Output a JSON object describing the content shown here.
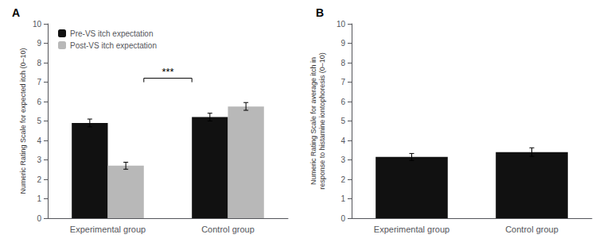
{
  "chart_data": [
    {
      "type": "bar",
      "title": "A",
      "categories": [
        "Experimental group",
        "Control group"
      ],
      "series": [
        {
          "name": "Pre-VS itch expectation",
          "color": "#111111",
          "values": [
            4.9,
            5.2
          ],
          "errors": [
            0.2,
            0.2
          ]
        },
        {
          "name": "Post-VS itch expectation",
          "color": "#b8b8b8",
          "values": [
            2.7,
            5.75
          ],
          "errors": [
            0.18,
            0.2
          ]
        }
      ],
      "ylabel": "Numeric Rating Scale for expected itch (0–10)",
      "ylim": [
        0,
        10
      ],
      "yticks": [
        0,
        1,
        2,
        3,
        4,
        5,
        6,
        7,
        8,
        9,
        10
      ],
      "annotations": [
        {
          "text": "***",
          "y": 7.2
        }
      ],
      "legend": "upper left",
      "grid": false
    },
    {
      "type": "bar",
      "title": "B",
      "categories": [
        "Experimental group",
        "Control group"
      ],
      "values": [
        3.15,
        3.4
      ],
      "errors": [
        0.18,
        0.22
      ],
      "color": "#111111",
      "ylabel": "Numeric Rating Scale for average itch in\nresponse to histamine iontophoresis (0–10)",
      "ylim": [
        0,
        10
      ],
      "yticks": [
        0,
        1,
        2,
        3,
        4,
        5,
        6,
        7,
        8,
        9,
        10
      ],
      "grid": false
    }
  ]
}
